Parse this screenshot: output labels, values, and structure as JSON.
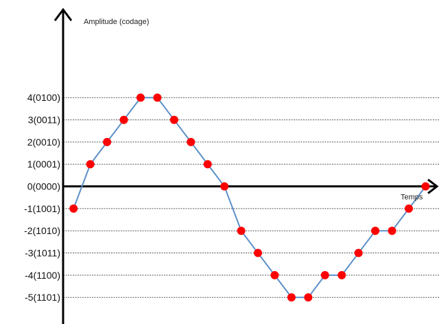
{
  "chart_data": {
    "type": "line",
    "ylabel": "Amplitude (codage)",
    "xlabel": "Temps",
    "y_ticks": [
      {
        "value": 4,
        "label": "4(0100)"
      },
      {
        "value": 3,
        "label": "3(0011)"
      },
      {
        "value": 2,
        "label": "2(0010)"
      },
      {
        "value": 1,
        "label": "1(0001)"
      },
      {
        "value": 0,
        "label": "0(0000)"
      },
      {
        "value": -1,
        "label": "-1(1001)"
      },
      {
        "value": -2,
        "label": "-2(1010)"
      },
      {
        "value": -3,
        "label": "-3(1011)"
      },
      {
        "value": -4,
        "label": "-4(1100)"
      },
      {
        "value": -5,
        "label": "-5(1101)"
      }
    ],
    "ylim": [
      -6.2,
      8.4
    ],
    "xlim": [
      -0.5,
      21.8
    ],
    "grid": true,
    "series": [
      {
        "x": [
          0,
          1,
          2,
          3,
          4,
          5,
          6,
          7,
          8,
          9,
          10,
          11,
          12,
          13,
          14,
          15,
          16,
          17,
          18,
          19,
          20,
          21
        ],
        "values": [
          -1,
          1,
          2,
          3,
          4,
          4,
          3,
          2,
          1,
          0,
          -2,
          -3,
          -4,
          -5,
          -5,
          -4,
          -4,
          -3,
          -2,
          -2,
          -1,
          0
        ]
      }
    ],
    "colors": {
      "line": "#5b8fc9",
      "points": "#ff0000",
      "axes": "#000000",
      "grid": "#555555"
    }
  }
}
